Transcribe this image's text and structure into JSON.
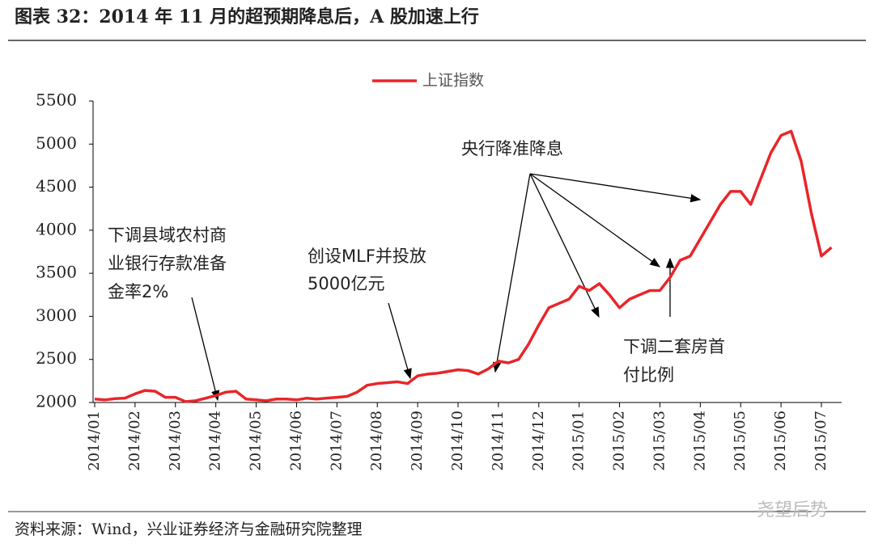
{
  "title": "图表 32：2014 年 11 月的超预期降息后，A 股加速上行",
  "source": "资料来源：Wind，兴业证券经济与金融研究院整理",
  "watermark": "尧望后势",
  "chart_data": {
    "type": "line",
    "x": [
      "2014/01",
      null,
      null,
      null,
      "2014/02",
      null,
      null,
      null,
      "2014/03",
      null,
      null,
      null,
      "2014/04",
      null,
      null,
      null,
      "2014/05",
      null,
      null,
      null,
      "2014/06",
      null,
      null,
      null,
      "2014/07",
      null,
      null,
      null,
      "2014/08",
      null,
      null,
      null,
      "2014/09",
      null,
      null,
      null,
      "2014/10",
      null,
      null,
      null,
      "2014/11",
      null,
      null,
      null,
      "2014/12",
      null,
      null,
      null,
      "2015/01",
      null,
      null,
      null,
      "2015/02",
      null,
      null,
      null,
      "2015/03",
      null,
      null,
      null,
      "2015/04",
      null,
      null,
      null,
      "2015/05",
      null,
      null,
      null,
      "2015/06",
      null,
      null,
      null,
      "2015/07",
      null
    ],
    "series": [
      {
        "name": "上证指数",
        "color": "#e8262a",
        "values": [
          2040,
          2030,
          2045,
          2050,
          2100,
          2140,
          2130,
          2060,
          2060,
          2010,
          2020,
          2050,
          2080,
          2120,
          2130,
          2040,
          2030,
          2020,
          2040,
          2040,
          2030,
          2050,
          2040,
          2050,
          2060,
          2070,
          2120,
          2200,
          2220,
          2230,
          2240,
          2220,
          2310,
          2330,
          2340,
          2360,
          2380,
          2370,
          2330,
          2390,
          2480,
          2460,
          2500,
          2680,
          2900,
          3100,
          3150,
          3200,
          3350,
          3300,
          3380,
          3250,
          3100,
          3200,
          3250,
          3300,
          3300,
          3450,
          3650,
          3700,
          3900,
          4100,
          4300,
          4450,
          4450,
          4300,
          4600,
          4900,
          5100,
          5150,
          4800,
          4200,
          3700,
          3800
        ]
      }
    ],
    "ylim": [
      2000,
      5500
    ],
    "yticks": [
      2000,
      2500,
      3000,
      3500,
      4000,
      4500,
      5000,
      5500
    ],
    "grid": false,
    "annotations": [
      {
        "lines": [
          "下调县域农村商",
          "业银行存款准备",
          "金率2%"
        ]
      },
      {
        "lines": [
          "创设MLF并投放",
          "5000亿元"
        ]
      },
      {
        "lines": [
          "央行降准降息"
        ]
      },
      {
        "lines": [
          "下调二套房首",
          "付比例"
        ]
      }
    ]
  }
}
